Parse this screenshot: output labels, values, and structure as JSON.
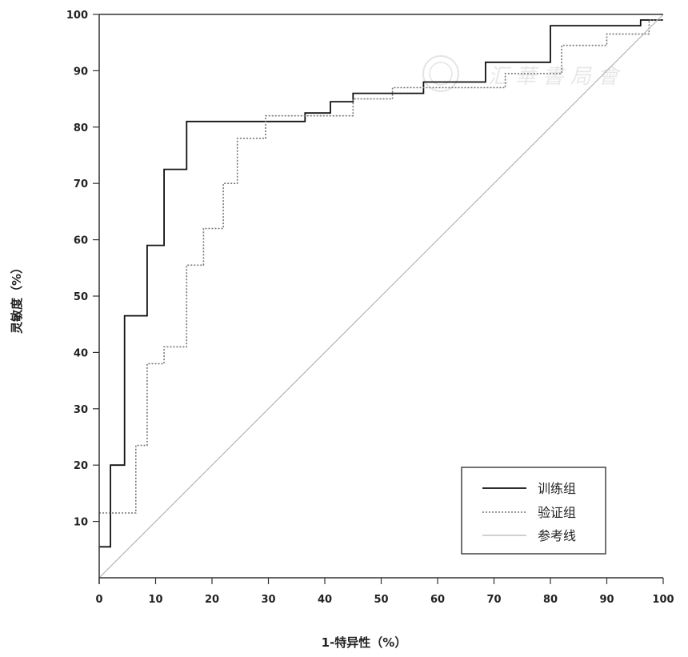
{
  "chart_data": {
    "type": "line",
    "xlabel": "1-特异性（%）",
    "ylabel": "灵敏度（%）",
    "xlim": [
      0,
      100
    ],
    "ylim": [
      0,
      100
    ],
    "x_ticks": [
      0,
      10,
      20,
      30,
      40,
      50,
      60,
      70,
      80,
      90,
      100
    ],
    "y_ticks": [
      10,
      20,
      30,
      40,
      50,
      60,
      70,
      80,
      90,
      100
    ],
    "grid": false,
    "legend_position": "bottom-right",
    "series": [
      {
        "name": "训练组",
        "style": "solid",
        "color": "#111111",
        "x": [
          0,
          2,
          2,
          4.5,
          4.5,
          8.5,
          8.5,
          11.5,
          11.5,
          15.5,
          15.5,
          36.5,
          36.5,
          41,
          41,
          45,
          45,
          57.5,
          57.5,
          68.5,
          68.5,
          80,
          80,
          96,
          96,
          100
        ],
        "y": [
          5.5,
          5.5,
          20,
          20,
          46.5,
          46.5,
          59,
          59,
          72.5,
          72.5,
          81,
          81,
          82.5,
          82.5,
          84.5,
          84.5,
          86,
          86,
          88,
          88,
          91.5,
          91.5,
          98,
          98,
          99,
          99
        ]
      },
      {
        "name": "验证组",
        "style": "dotted",
        "color": "#777777",
        "x": [
          0,
          6.5,
          6.5,
          8.5,
          8.5,
          11.5,
          11.5,
          15.5,
          15.5,
          18.5,
          18.5,
          22,
          22,
          24.5,
          24.5,
          29.5,
          29.5,
          45,
          45,
          52,
          52,
          72,
          72,
          82,
          82,
          90,
          90,
          97.5,
          97.5,
          100
        ],
        "y": [
          11.5,
          11.5,
          23.5,
          23.5,
          38,
          38,
          41,
          41,
          55.5,
          55.5,
          62,
          62,
          70,
          70,
          78,
          78,
          82,
          82,
          85,
          85,
          87,
          87,
          89.5,
          89.5,
          94.5,
          94.5,
          96.5,
          96.5,
          99,
          99
        ]
      },
      {
        "name": "参考线",
        "style": "solid",
        "color": "#b5b5b5",
        "x": [
          0,
          100
        ],
        "y": [
          0,
          100
        ]
      }
    ]
  }
}
